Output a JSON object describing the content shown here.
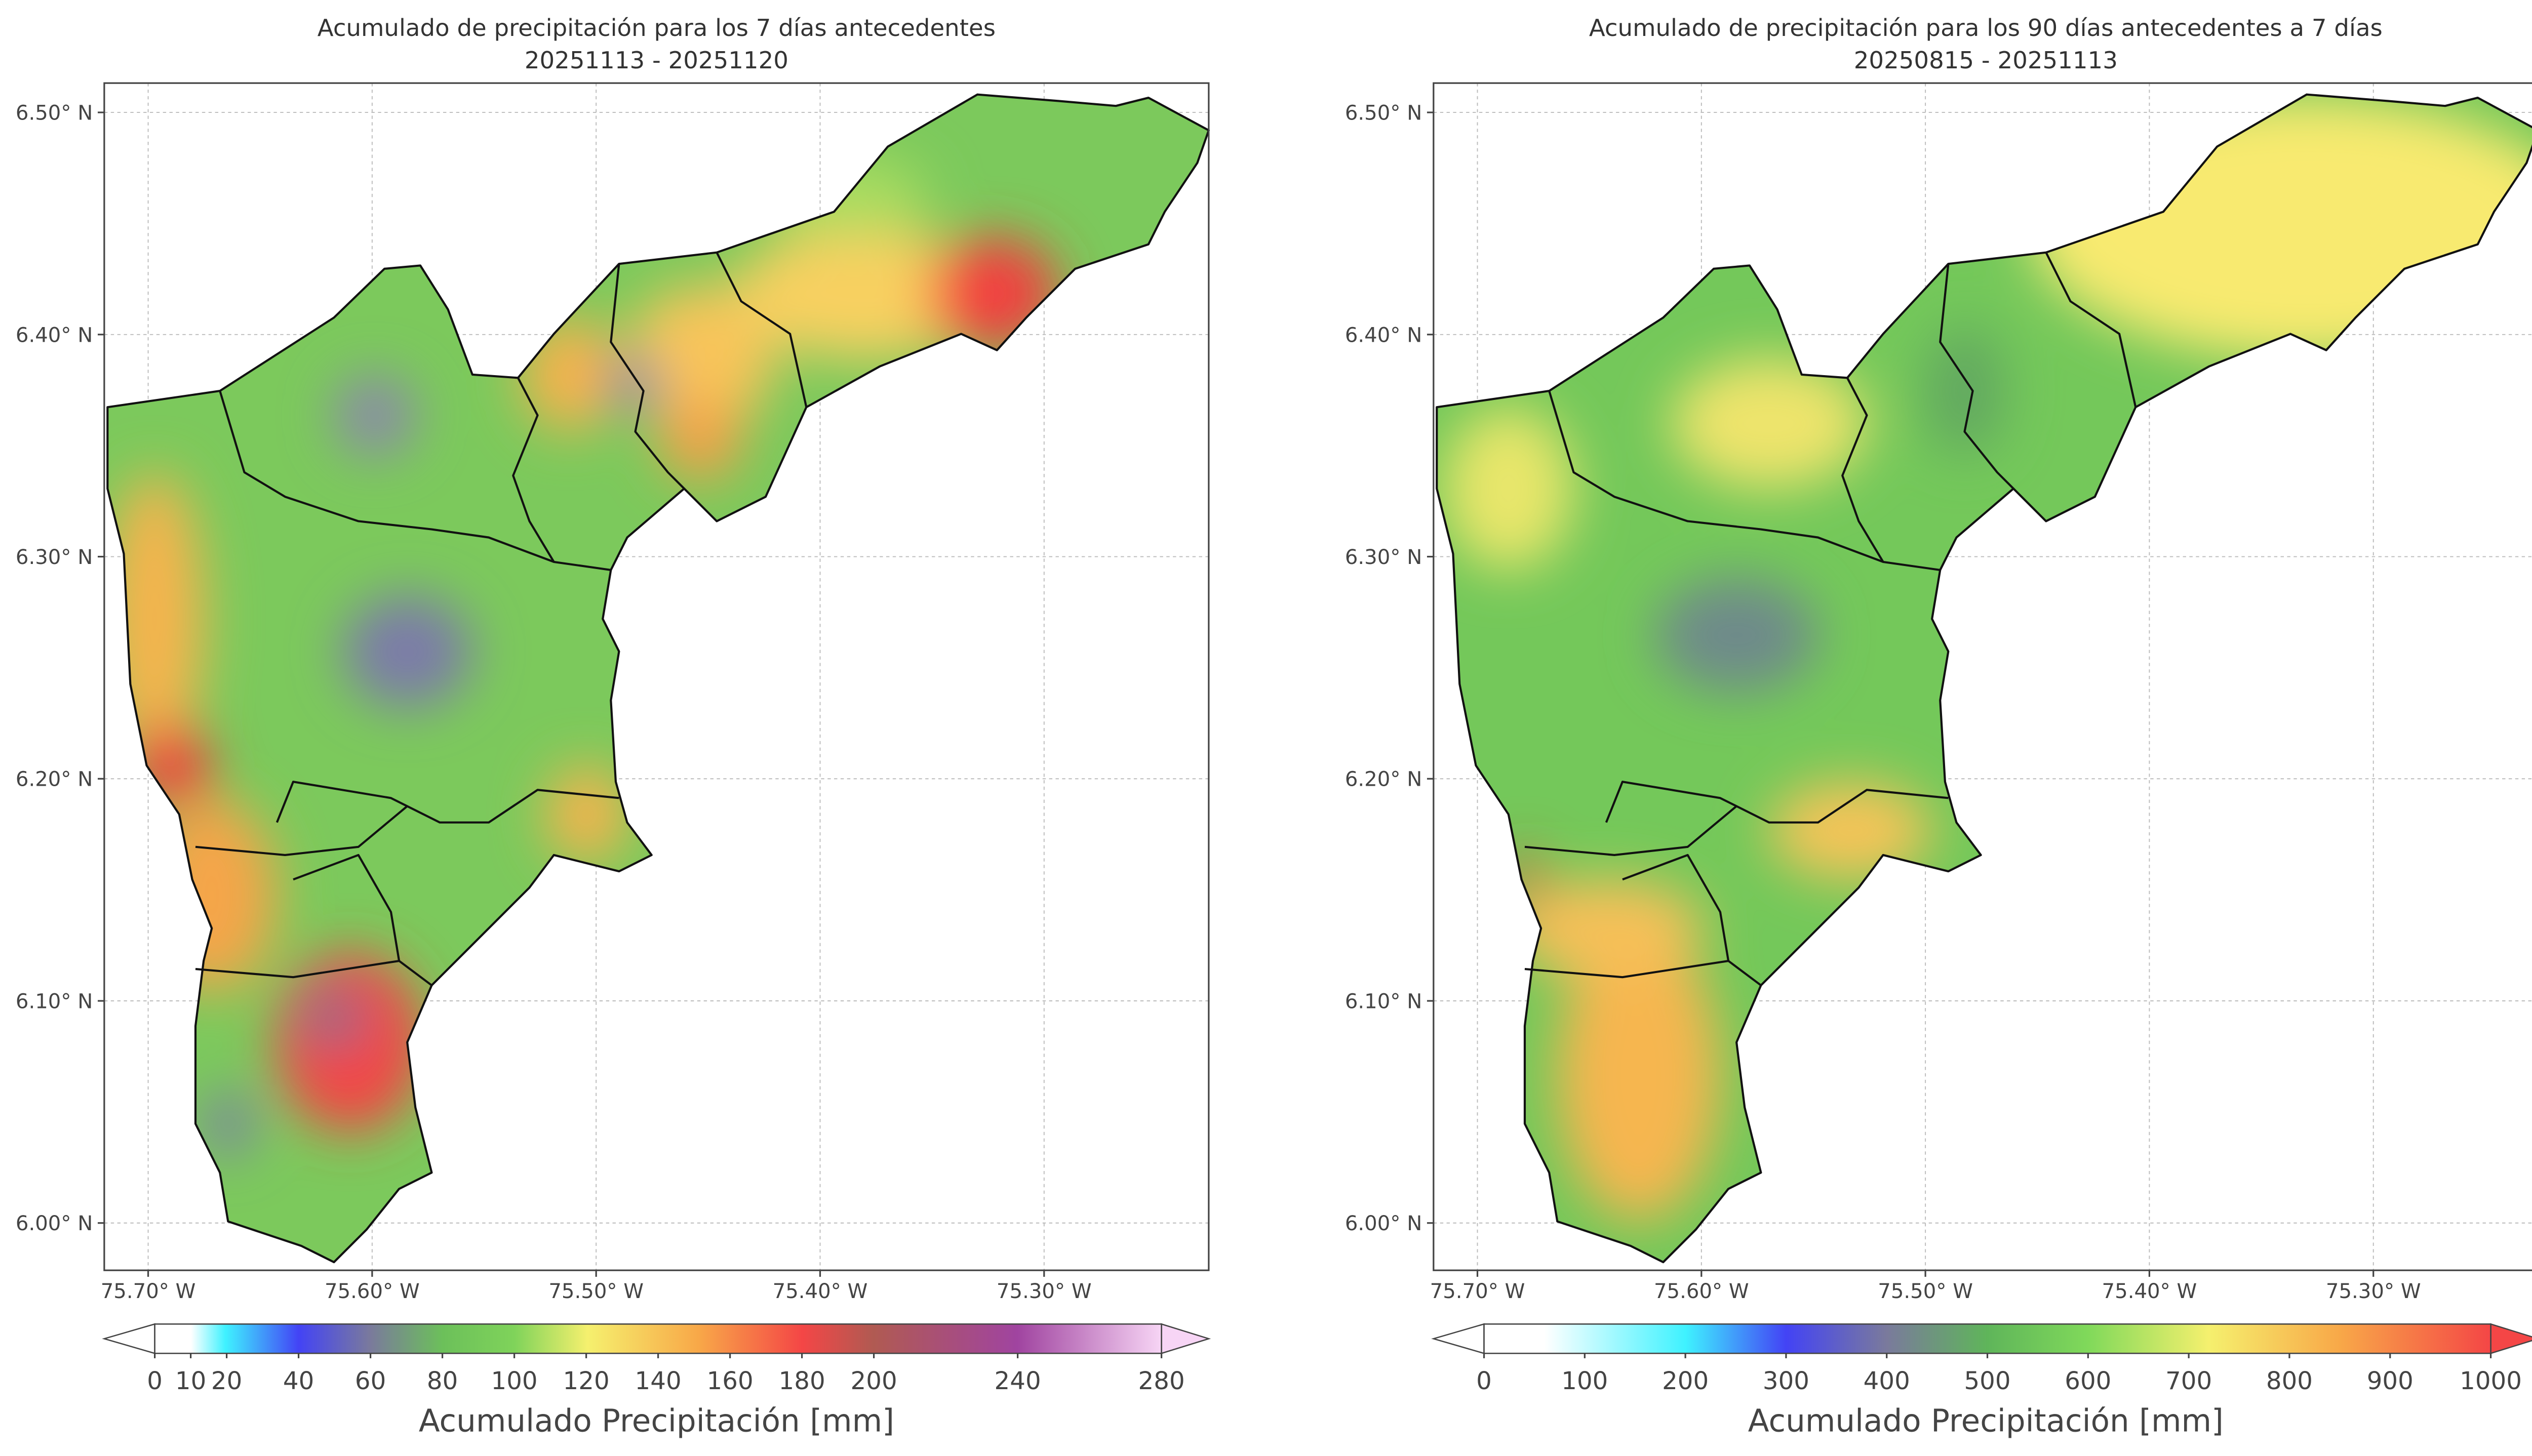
{
  "panels": [
    {
      "title": "Acumulado de precipitación para los 7 días antecedentes",
      "subtitle": "20251113 - 20251120",
      "xlim": [
        -75.7196,
        -75.2265
      ],
      "ylim": [
        5.9787,
        6.5132
      ],
      "xticks": [
        {
          "value": -75.7,
          "label": "75.70° W"
        },
        {
          "value": -75.6,
          "label": "75.60° W"
        },
        {
          "value": -75.5,
          "label": "75.50° W"
        },
        {
          "value": -75.4,
          "label": "75.40° W"
        },
        {
          "value": -75.3,
          "label": "75.30° W"
        }
      ],
      "yticks": [
        {
          "value": 6.0,
          "label": "6.00° N"
        },
        {
          "value": 6.1,
          "label": "6.10° N"
        },
        {
          "value": 6.2,
          "label": "6.20° N"
        },
        {
          "value": 6.3,
          "label": "6.30° N"
        },
        {
          "value": 6.4,
          "label": "6.40° N"
        },
        {
          "value": 6.5,
          "label": "6.50° N"
        }
      ],
      "colorbar": {
        "label": "Acumulado Precipitación [mm]",
        "lim": [
          0,
          280
        ],
        "ticks": [
          0,
          10,
          20,
          40,
          60,
          80,
          100,
          120,
          140,
          160,
          180,
          200,
          240,
          280
        ]
      }
    },
    {
      "title": "Acumulado de precipitación para los 90 días antecedentes a 7 días",
      "subtitle": "20250815 - 20251113",
      "xlim": [
        -75.7196,
        -75.2265
      ],
      "ylim": [
        5.9787,
        6.5132
      ],
      "xticks": [
        {
          "value": -75.7,
          "label": "75.70° W"
        },
        {
          "value": -75.6,
          "label": "75.60° W"
        },
        {
          "value": -75.5,
          "label": "75.50° W"
        },
        {
          "value": -75.4,
          "label": "75.40° W"
        },
        {
          "value": -75.3,
          "label": "75.30° W"
        }
      ],
      "yticks": [
        {
          "value": 6.0,
          "label": "6.00° N"
        },
        {
          "value": 6.1,
          "label": "6.10° N"
        },
        {
          "value": 6.2,
          "label": "6.20° N"
        },
        {
          "value": 6.3,
          "label": "6.30° N"
        },
        {
          "value": 6.4,
          "label": "6.40° N"
        },
        {
          "value": 6.5,
          "label": "6.50° N"
        }
      ],
      "colorbar": {
        "label": "Acumulado Precipitación [mm]",
        "lim": [
          0,
          1000
        ],
        "ticks": [
          0,
          100,
          200,
          300,
          400,
          500,
          600,
          700,
          800,
          900,
          1000
        ]
      }
    }
  ]
}
